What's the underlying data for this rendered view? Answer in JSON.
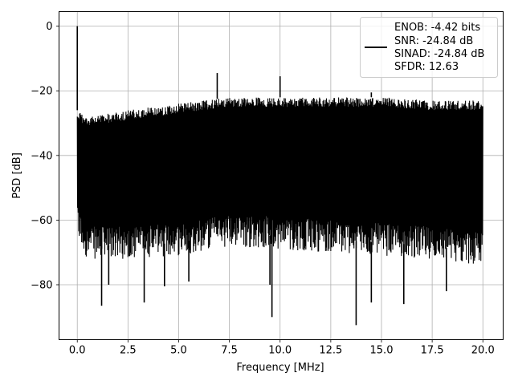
{
  "chart_data": {
    "type": "line",
    "title": "",
    "xlabel": "Frequency [MHz]",
    "ylabel": "PSD [dB]",
    "xlim": [
      -0.9,
      21.0
    ],
    "ylim": [
      -97,
      4.5
    ],
    "grid": true,
    "legend_placement": "top-right",
    "x_ticks": [
      0.0,
      2.5,
      5.0,
      7.5,
      10.0,
      12.5,
      15.0,
      17.5,
      20.0
    ],
    "x_tick_labels": [
      "0.0",
      "2.5",
      "5.0",
      "7.5",
      "10.0",
      "12.5",
      "15.0",
      "17.5",
      "20.0"
    ],
    "y_ticks": [
      0,
      -20,
      -40,
      -60,
      -80
    ],
    "y_tick_labels": [
      "0",
      "−20",
      "−40",
      "−60",
      "−80"
    ],
    "series": [
      {
        "color": "#000000",
        "legend_lines": [
          "ENOB: -4.42 bits",
          "SNR: -24.84 dB",
          "SINAD: -24.84 dB",
          "SFDR: 12.63"
        ],
        "noise_band": {
          "x_range": [
            0.0,
            20.0
          ],
          "upper_envelope": [
            [
              0.0,
              -26
            ],
            [
              0.5,
              -28
            ],
            [
              2.5,
              -26
            ],
            [
              5.0,
              -24
            ],
            [
              7.5,
              -22
            ],
            [
              10.0,
              -22
            ],
            [
              12.5,
              -22
            ],
            [
              15.0,
              -22
            ],
            [
              17.5,
              -23
            ],
            [
              20.0,
              -23
            ]
          ],
          "lower_envelope": [
            [
              0.0,
              -62
            ],
            [
              0.5,
              -68
            ],
            [
              2.5,
              -68
            ],
            [
              5.0,
              -67
            ],
            [
              7.5,
              -64
            ],
            [
              10.0,
              -65
            ],
            [
              12.5,
              -66
            ],
            [
              15.0,
              -67
            ],
            [
              17.5,
              -68
            ],
            [
              20.0,
              -70
            ]
          ]
        },
        "peaks": [
          [
            0.0,
            0.0
          ],
          [
            6.9,
            -14.5
          ],
          [
            10.0,
            -15.5
          ],
          [
            14.5,
            -20.5
          ]
        ],
        "dips": [
          [
            1.2,
            -86.5
          ],
          [
            1.55,
            -80
          ],
          [
            3.3,
            -85.5
          ],
          [
            4.3,
            -80.5
          ],
          [
            5.5,
            -79
          ],
          [
            9.5,
            -80
          ],
          [
            9.6,
            -90
          ],
          [
            13.75,
            -92.5
          ],
          [
            14.5,
            -85.5
          ],
          [
            16.1,
            -86
          ],
          [
            18.2,
            -82
          ]
        ]
      }
    ]
  }
}
